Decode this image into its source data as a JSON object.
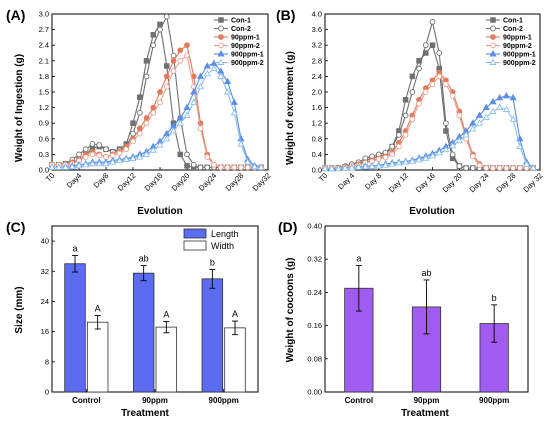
{
  "chart_data": [
    {
      "panel": "(A)",
      "type": "line",
      "ylabel": "Weight of Ingestion (g)",
      "xlabel": "Evolution",
      "ylim": [
        0,
        3.0
      ],
      "yticks": [
        "0.0",
        "0.3",
        "0.6",
        "0.9",
        "1.2",
        "1.5",
        "1.8",
        "2.1",
        "2.4",
        "2.7",
        "3.0"
      ],
      "xlim": [
        0,
        32
      ],
      "xticks": [
        {
          "v": 0,
          "label": "T0"
        },
        {
          "v": 4,
          "label": "Day4"
        },
        {
          "v": 8,
          "label": "Day8"
        },
        {
          "v": 12,
          "label": "Day12"
        },
        {
          "v": 16,
          "label": "Day16"
        },
        {
          "v": 20,
          "label": "Day20"
        },
        {
          "v": 24,
          "label": "Day24"
        },
        {
          "v": 28,
          "label": "Day28"
        },
        {
          "v": 32,
          "label": "Day32"
        }
      ],
      "legend": "top-right",
      "series": [
        {
          "name": "Con-1",
          "color": "#707070",
          "marker": "square",
          "fill": true,
          "x": [
            0,
            1,
            2,
            3,
            4,
            5,
            6,
            7,
            8,
            9,
            10,
            11,
            12,
            13,
            14,
            15,
            16,
            17,
            18,
            19,
            20,
            21,
            22,
            23,
            24,
            25,
            26,
            27,
            28,
            29,
            30,
            31
          ],
          "y": [
            0.1,
            0.1,
            0.12,
            0.15,
            0.2,
            0.3,
            0.42,
            0.45,
            0.4,
            0.35,
            0.4,
            0.5,
            0.9,
            1.4,
            2.1,
            2.6,
            2.8,
            2.0,
            0.9,
            0.3,
            0.08,
            0.05,
            0.05,
            0.05,
            0.05,
            0.05,
            0.05,
            0.05,
            0.05,
            0.05,
            0.05,
            0.05
          ]
        },
        {
          "name": "Con-2",
          "color": "#707070",
          "marker": "circle",
          "fill": false,
          "x": [
            0,
            1,
            2,
            3,
            4,
            5,
            6,
            7,
            8,
            9,
            10,
            11,
            12,
            13,
            14,
            15,
            16,
            17,
            18,
            19,
            20,
            21,
            22,
            23,
            24,
            25,
            26,
            27,
            28,
            29,
            30,
            31
          ],
          "y": [
            0.1,
            0.1,
            0.12,
            0.2,
            0.3,
            0.4,
            0.5,
            0.48,
            0.4,
            0.35,
            0.38,
            0.45,
            0.7,
            1.1,
            1.8,
            2.4,
            2.7,
            2.95,
            2.2,
            1.0,
            0.3,
            0.1,
            0.05,
            0.05,
            0.05,
            0.05,
            0.05,
            0.05,
            0.05,
            0.05,
            0.05,
            0.05
          ]
        },
        {
          "name": "90ppm-1",
          "color": "#e07a5a",
          "marker": "circle",
          "fill": true,
          "x": [
            0,
            1,
            2,
            3,
            4,
            5,
            6,
            7,
            8,
            9,
            10,
            11,
            12,
            13,
            14,
            15,
            16,
            17,
            18,
            19,
            20,
            21,
            22,
            23,
            24,
            25,
            26,
            27,
            28,
            29,
            30,
            31
          ],
          "y": [
            0.1,
            0.1,
            0.1,
            0.15,
            0.2,
            0.3,
            0.35,
            0.3,
            0.25,
            0.3,
            0.35,
            0.45,
            0.6,
            0.8,
            1.0,
            1.2,
            1.5,
            1.8,
            2.1,
            2.3,
            2.4,
            1.8,
            0.9,
            0.3,
            0.1,
            0.05,
            0.05,
            0.05,
            0.05,
            0.05,
            0.05,
            0.05
          ]
        },
        {
          "name": "90ppm-2",
          "color": "#e8a090",
          "marker": "circle",
          "fill": false,
          "x": [
            0,
            1,
            2,
            3,
            4,
            5,
            6,
            7,
            8,
            9,
            10,
            11,
            12,
            13,
            14,
            15,
            16,
            17,
            18,
            19,
            20,
            21,
            22,
            23,
            24,
            25,
            26,
            27,
            28,
            29,
            30,
            31
          ],
          "y": [
            0.1,
            0.1,
            0.1,
            0.12,
            0.18,
            0.25,
            0.3,
            0.28,
            0.25,
            0.28,
            0.32,
            0.4,
            0.55,
            0.7,
            0.9,
            1.1,
            1.3,
            1.6,
            1.9,
            2.1,
            2.2,
            1.6,
            0.8,
            0.25,
            0.1,
            0.05,
            0.05,
            0.05,
            0.05,
            0.05,
            0.05,
            0.05
          ]
        },
        {
          "name": "900ppm-1",
          "color": "#5b8ee6",
          "marker": "triangle",
          "fill": true,
          "x": [
            0,
            1,
            2,
            3,
            4,
            5,
            6,
            7,
            8,
            9,
            10,
            11,
            12,
            13,
            14,
            15,
            16,
            17,
            18,
            19,
            20,
            21,
            22,
            23,
            24,
            25,
            26,
            27,
            28,
            29,
            30,
            31
          ],
          "y": [
            0.05,
            0.05,
            0.06,
            0.08,
            0.1,
            0.12,
            0.15,
            0.15,
            0.15,
            0.18,
            0.2,
            0.22,
            0.25,
            0.3,
            0.35,
            0.45,
            0.55,
            0.7,
            0.85,
            1.0,
            1.2,
            1.5,
            1.8,
            2.0,
            2.05,
            1.9,
            1.7,
            1.3,
            0.6,
            0.2,
            0.08,
            0.05
          ]
        },
        {
          "name": "900ppm-2",
          "color": "#8cc0f0",
          "marker": "triangle",
          "fill": false,
          "x": [
            0,
            1,
            2,
            3,
            4,
            5,
            6,
            7,
            8,
            9,
            10,
            11,
            12,
            13,
            14,
            15,
            16,
            17,
            18,
            19,
            20,
            21,
            22,
            23,
            24,
            25,
            26,
            27,
            28,
            29,
            30,
            31
          ],
          "y": [
            0.05,
            0.05,
            0.05,
            0.06,
            0.08,
            0.1,
            0.12,
            0.12,
            0.12,
            0.15,
            0.18,
            0.2,
            0.22,
            0.25,
            0.3,
            0.38,
            0.48,
            0.6,
            0.75,
            0.9,
            1.05,
            1.3,
            1.6,
            1.85,
            1.95,
            1.8,
            1.5,
            1.1,
            0.5,
            0.15,
            0.06,
            0.05
          ]
        }
      ]
    },
    {
      "panel": "(B)",
      "type": "line",
      "ylabel": "Weight of excrement (g)",
      "xlabel": "Evolution",
      "ylim": [
        0,
        4.0
      ],
      "yticks": [
        "0.0",
        "0.4",
        "0.8",
        "1.2",
        "1.6",
        "2.0",
        "2.4",
        "2.8",
        "3.2",
        "3.6",
        "4.0"
      ],
      "xlim": [
        0,
        32
      ],
      "xticks": [
        {
          "v": 0,
          "label": "T0"
        },
        {
          "v": 4,
          "label": "Day 4"
        },
        {
          "v": 8,
          "label": "Day 8"
        },
        {
          "v": 12,
          "label": "Day 12"
        },
        {
          "v": 16,
          "label": "Day 16"
        },
        {
          "v": 20,
          "label": "Day 20"
        },
        {
          "v": 24,
          "label": "Day 24"
        },
        {
          "v": 28,
          "label": "Day 28"
        },
        {
          "v": 32,
          "label": "Day 32"
        }
      ],
      "legend": "top-right",
      "series": [
        {
          "name": "Con-1",
          "color": "#707070",
          "marker": "square",
          "fill": true,
          "x": [
            0,
            1,
            2,
            3,
            4,
            5,
            6,
            7,
            8,
            9,
            10,
            11,
            12,
            13,
            14,
            15,
            16,
            17,
            18,
            19,
            20,
            21,
            22,
            23,
            24,
            25,
            26,
            27,
            28,
            29,
            30,
            31
          ],
          "y": [
            0.05,
            0.05,
            0.05,
            0.08,
            0.1,
            0.15,
            0.25,
            0.3,
            0.35,
            0.4,
            0.6,
            1.0,
            1.8,
            2.4,
            2.8,
            3.0,
            3.2,
            2.6,
            1.0,
            0.3,
            0.1,
            0.05,
            0.05,
            0.05,
            0.05,
            0.05,
            0.05,
            0.05,
            0.05,
            0.05,
            0.05,
            0.05
          ]
        },
        {
          "name": "Con-2",
          "color": "#707070",
          "marker": "circle",
          "fill": false,
          "x": [
            0,
            1,
            2,
            3,
            4,
            5,
            6,
            7,
            8,
            9,
            10,
            11,
            12,
            13,
            14,
            15,
            16,
            17,
            18,
            19,
            20,
            21,
            22,
            23,
            24,
            25,
            26,
            27,
            28,
            29,
            30,
            31
          ],
          "y": [
            0.05,
            0.05,
            0.06,
            0.1,
            0.15,
            0.2,
            0.3,
            0.35,
            0.4,
            0.45,
            0.6,
            0.9,
            1.4,
            2.0,
            2.6,
            3.2,
            3.8,
            3.0,
            1.2,
            0.4,
            0.1,
            0.05,
            0.05,
            0.05,
            0.05,
            0.05,
            0.05,
            0.05,
            0.05,
            0.05,
            0.05,
            0.05
          ]
        },
        {
          "name": "90ppm-1",
          "color": "#e07a5a",
          "marker": "circle",
          "fill": true,
          "x": [
            0,
            1,
            2,
            3,
            4,
            5,
            6,
            7,
            8,
            9,
            10,
            11,
            12,
            13,
            14,
            15,
            16,
            17,
            18,
            19,
            20,
            21,
            22,
            23,
            24,
            25,
            26,
            27,
            28,
            29,
            30,
            31
          ],
          "y": [
            0.05,
            0.05,
            0.05,
            0.08,
            0.1,
            0.15,
            0.2,
            0.25,
            0.3,
            0.35,
            0.45,
            0.7,
            1.0,
            1.4,
            1.8,
            2.1,
            2.3,
            2.5,
            2.3,
            2.0,
            1.5,
            0.9,
            0.4,
            0.15,
            0.05,
            0.05,
            0.05,
            0.05,
            0.05,
            0.05,
            0.05,
            0.05
          ]
        },
        {
          "name": "90ppm-2",
          "color": "#e8a090",
          "marker": "circle",
          "fill": false,
          "x": [
            0,
            1,
            2,
            3,
            4,
            5,
            6,
            7,
            8,
            9,
            10,
            11,
            12,
            13,
            14,
            15,
            16,
            17,
            18,
            19,
            20,
            21,
            22,
            23,
            24,
            25,
            26,
            27,
            28,
            29,
            30,
            31
          ],
          "y": [
            0.05,
            0.05,
            0.05,
            0.07,
            0.1,
            0.12,
            0.18,
            0.22,
            0.28,
            0.32,
            0.4,
            0.6,
            0.9,
            1.3,
            1.7,
            2.0,
            2.2,
            2.4,
            2.2,
            1.9,
            1.4,
            0.8,
            0.35,
            0.12,
            0.05,
            0.05,
            0.05,
            0.05,
            0.05,
            0.05,
            0.05,
            0.05
          ]
        },
        {
          "name": "900ppm-1",
          "color": "#5b8ee6",
          "marker": "triangle",
          "fill": true,
          "x": [
            0,
            1,
            2,
            3,
            4,
            5,
            6,
            7,
            8,
            9,
            10,
            11,
            12,
            13,
            14,
            15,
            16,
            17,
            18,
            19,
            20,
            21,
            22,
            23,
            24,
            25,
            26,
            27,
            28,
            29,
            30,
            31
          ],
          "y": [
            0.03,
            0.03,
            0.04,
            0.05,
            0.06,
            0.08,
            0.1,
            0.1,
            0.12,
            0.15,
            0.18,
            0.2,
            0.22,
            0.25,
            0.3,
            0.35,
            0.42,
            0.5,
            0.6,
            0.7,
            0.85,
            1.0,
            1.2,
            1.4,
            1.6,
            1.75,
            1.85,
            1.9,
            1.85,
            0.8,
            0.2,
            0.05
          ]
        },
        {
          "name": "900ppm-2",
          "color": "#8cc0f0",
          "marker": "triangle",
          "fill": false,
          "x": [
            0,
            1,
            2,
            3,
            4,
            5,
            6,
            7,
            8,
            9,
            10,
            11,
            12,
            13,
            14,
            15,
            16,
            17,
            18,
            19,
            20,
            21,
            22,
            23,
            24,
            25,
            26,
            27,
            28,
            29,
            30,
            31
          ],
          "y": [
            0.03,
            0.03,
            0.03,
            0.04,
            0.05,
            0.07,
            0.08,
            0.09,
            0.1,
            0.12,
            0.15,
            0.18,
            0.2,
            0.22,
            0.26,
            0.3,
            0.36,
            0.44,
            0.52,
            0.62,
            0.75,
            0.9,
            1.05,
            1.2,
            1.35,
            1.5,
            1.6,
            1.55,
            1.3,
            0.6,
            0.15,
            0.05
          ]
        }
      ]
    },
    {
      "panel": "(C)",
      "type": "bar",
      "ylabel": "Size (mm)",
      "xlabel": "Treatment",
      "ylim": [
        0,
        44
      ],
      "yticks": [
        "0",
        "8",
        "16",
        "24",
        "32",
        "40"
      ],
      "categories": [
        "Control",
        "90ppm",
        "900ppm"
      ],
      "legend": "top-right",
      "series": [
        {
          "name": "Length",
          "color": "#5b6cf0",
          "values": [
            34,
            31.5,
            30
          ],
          "errors": [
            2.2,
            2.0,
            2.5
          ],
          "letters": [
            "a",
            "ab",
            "b"
          ]
        },
        {
          "name": "Width",
          "color": "#ffffff",
          "values": [
            18.5,
            17.2,
            17.0
          ],
          "errors": [
            1.8,
            1.5,
            1.8
          ],
          "letters": [
            "A",
            "A",
            "A"
          ]
        }
      ]
    },
    {
      "panel": "(D)",
      "type": "bar",
      "ylabel": "Weight of cocoons (g)",
      "xlabel": "Treatment",
      "ylim": [
        0,
        0.4
      ],
      "yticks": [
        "0.00",
        "0.08",
        "0.16",
        "0.24",
        "0.32",
        "0.40"
      ],
      "categories": [
        "Control",
        "90ppm",
        "900ppm"
      ],
      "series": [
        {
          "name": "",
          "color": "#a05cf0",
          "values": [
            0.25,
            0.205,
            0.165
          ],
          "errors": [
            0.055,
            0.065,
            0.045
          ],
          "letters": [
            "a",
            "ab",
            "b"
          ]
        }
      ]
    }
  ]
}
